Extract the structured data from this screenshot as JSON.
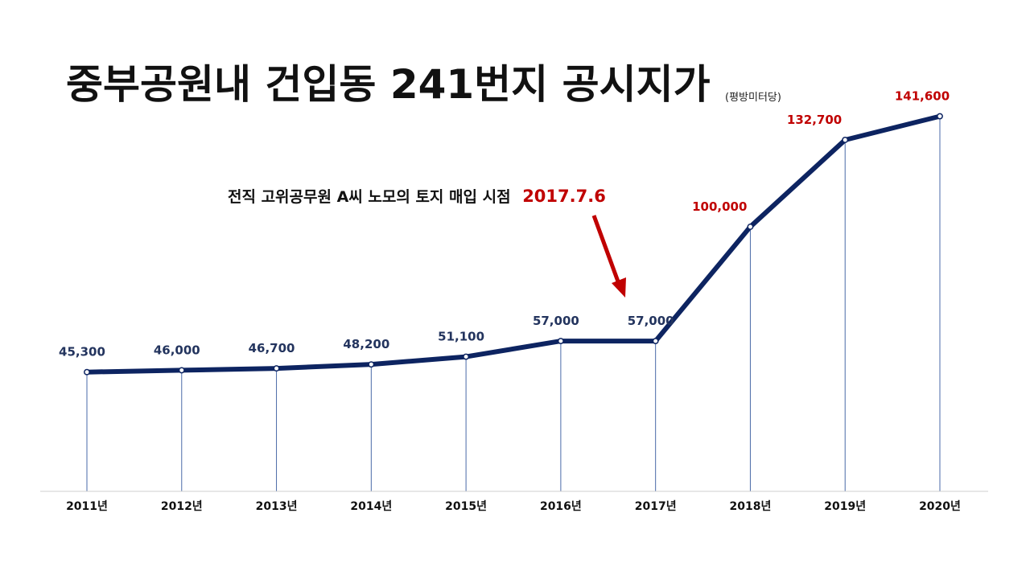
{
  "chart_data": {
    "type": "line",
    "title": "중부공원내 건입동 241번지 공시지가",
    "unit_note": "(평방미터당)",
    "categories": [
      "2011년",
      "2012년",
      "2013년",
      "2014년",
      "2015년",
      "2016년",
      "2017년",
      "2018년",
      "2019년",
      "2020년"
    ],
    "values": [
      45300,
      46000,
      46700,
      48200,
      51100,
      57000,
      57000,
      100000,
      132700,
      141600
    ],
    "value_labels": [
      "45,300",
      "46,000",
      "46,700",
      "48,200",
      "51,100",
      "57,000",
      "57,000",
      "100,000",
      "132,700",
      "141,600"
    ],
    "ylim": [
      0,
      150000
    ],
    "grid": false,
    "annotation": {
      "text": "전직 고위공무원 A씨 노모의 토지 매입 시점",
      "date": "2017.7.6"
    },
    "colors": {
      "line": "#0d2461",
      "label_normal": "#23345e",
      "label_highlight": "#c00000",
      "arrow": "#c00000",
      "drop_line": "#4a6aa8",
      "axis": "#cfcfcf"
    },
    "highlight_from_index": 7
  }
}
